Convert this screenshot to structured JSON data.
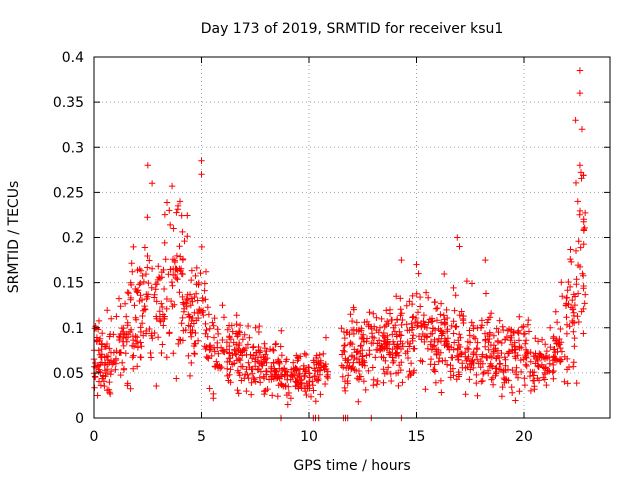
{
  "chart_data": {
    "type": "scatter",
    "title": "Day 173 of 2019, SRMTID for receiver ksu1",
    "xlabel": "GPS time / hours",
    "ylabel": "SRMTID / TECUs",
    "xlim": [
      0,
      24
    ],
    "ylim": [
      0,
      0.4
    ],
    "x_ticks": [
      "0",
      "5",
      "10",
      "15",
      "20"
    ],
    "x_tick_values": [
      0,
      5,
      10,
      15,
      20
    ],
    "y_ticks": [
      "0",
      "0.05",
      "0.1",
      "0.15",
      "0.2",
      "0.25",
      "0.3",
      "0.35",
      "0.4"
    ],
    "y_tick_values": [
      0,
      0.05,
      0.1,
      0.15,
      0.2,
      0.25,
      0.3,
      0.35,
      0.4
    ],
    "grid": true,
    "marker": "+",
    "series_color": "#ff0000",
    "trend_points": [
      [
        0.0,
        0.065
      ],
      [
        0.5,
        0.06
      ],
      [
        1.0,
        0.07
      ],
      [
        1.5,
        0.09
      ],
      [
        2.0,
        0.11
      ],
      [
        2.5,
        0.14
      ],
      [
        3.0,
        0.12
      ],
      [
        3.5,
        0.14
      ],
      [
        4.0,
        0.15
      ],
      [
        4.5,
        0.12
      ],
      [
        5.0,
        0.11
      ],
      [
        5.5,
        0.08
      ],
      [
        6.0,
        0.075
      ],
      [
        7.0,
        0.065
      ],
      [
        8.0,
        0.055
      ],
      [
        9.0,
        0.045
      ],
      [
        10.0,
        0.045
      ],
      [
        10.7,
        0.05
      ],
      [
        11.8,
        0.07
      ],
      [
        13.0,
        0.075
      ],
      [
        14.0,
        0.085
      ],
      [
        15.0,
        0.09
      ],
      [
        16.0,
        0.085
      ],
      [
        17.0,
        0.08
      ],
      [
        18.0,
        0.075
      ],
      [
        19.0,
        0.07
      ],
      [
        20.0,
        0.065
      ],
      [
        21.0,
        0.06
      ],
      [
        21.5,
        0.07
      ],
      [
        22.0,
        0.1
      ],
      [
        22.5,
        0.15
      ],
      [
        22.8,
        0.18
      ]
    ],
    "spikes": [
      {
        "x": 2.5,
        "y": 0.28
      },
      {
        "x": 2.7,
        "y": 0.26
      },
      {
        "x": 3.5,
        "y": 0.23
      },
      {
        "x": 3.7,
        "y": 0.21
      },
      {
        "x": 4.0,
        "y": 0.24
      },
      {
        "x": 5.0,
        "y": 0.285
      },
      {
        "x": 5.0,
        "y": 0.27
      },
      {
        "x": 14.3,
        "y": 0.175
      },
      {
        "x": 15.0,
        "y": 0.17
      },
      {
        "x": 15.1,
        "y": 0.16
      },
      {
        "x": 16.9,
        "y": 0.2
      },
      {
        "x": 17.0,
        "y": 0.19
      },
      {
        "x": 18.2,
        "y": 0.175
      },
      {
        "x": 22.4,
        "y": 0.33
      },
      {
        "x": 22.6,
        "y": 0.385
      },
      {
        "x": 22.6,
        "y": 0.36
      },
      {
        "x": 22.7,
        "y": 0.32
      },
      {
        "x": 22.6,
        "y": 0.28
      },
      {
        "x": 22.5,
        "y": 0.24
      }
    ],
    "zero_points": [
      8.7,
      10.2,
      10.3,
      10.45,
      11.6,
      11.7,
      11.8,
      12.9,
      14.3
    ],
    "gap_hours": [
      10.9,
      11.5
    ],
    "end_hour": 22.85
  }
}
